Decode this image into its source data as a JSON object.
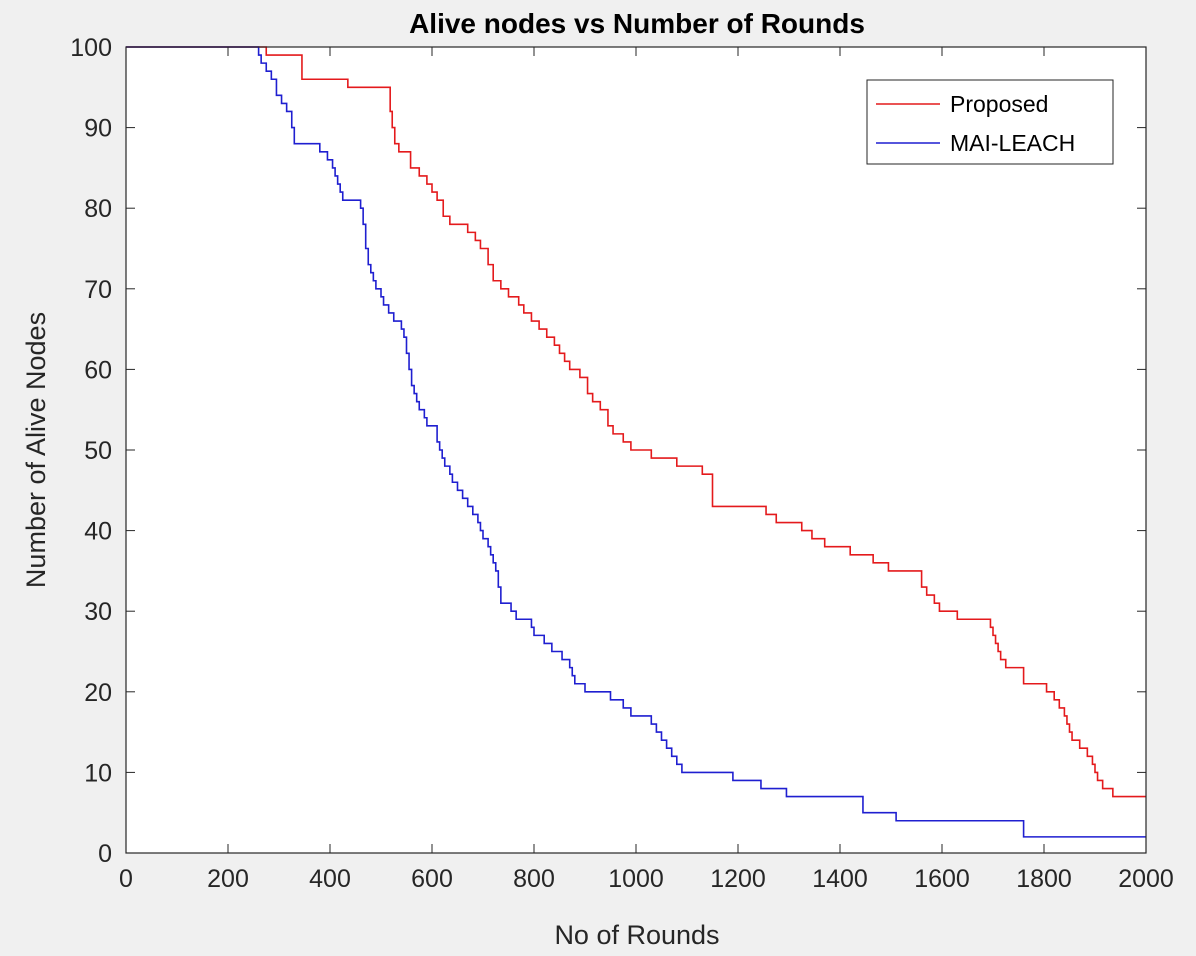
{
  "chart_data": {
    "type": "line",
    "title": "Alive nodes vs Number of Rounds",
    "xlabel": "No of Rounds",
    "ylabel": "Number of Alive Nodes",
    "xlim": [
      0,
      2000
    ],
    "ylim": [
      0,
      100
    ],
    "xticks": [
      "0",
      "200",
      "400",
      "600",
      "800",
      "1000",
      "1200",
      "1400",
      "1600",
      "1800",
      "2000"
    ],
    "yticks": [
      "0",
      "10",
      "20",
      "30",
      "40",
      "50",
      "60",
      "70",
      "80",
      "90",
      "100"
    ],
    "grid": false,
    "legend_position": "top-right",
    "series": [
      {
        "name": "Proposed",
        "color": "#e41a1c",
        "step": true,
        "points": [
          [
            0,
            100
          ],
          [
            270,
            100
          ],
          [
            275,
            99
          ],
          [
            340,
            99
          ],
          [
            345,
            96
          ],
          [
            430,
            96
          ],
          [
            435,
            95
          ],
          [
            515,
            95
          ],
          [
            518,
            92
          ],
          [
            522,
            90
          ],
          [
            527,
            88
          ],
          [
            535,
            87
          ],
          [
            555,
            87
          ],
          [
            558,
            85
          ],
          [
            575,
            84
          ],
          [
            590,
            83
          ],
          [
            600,
            82
          ],
          [
            610,
            81
          ],
          [
            622,
            79
          ],
          [
            635,
            78
          ],
          [
            665,
            78
          ],
          [
            670,
            77
          ],
          [
            685,
            76
          ],
          [
            695,
            75
          ],
          [
            710,
            73
          ],
          [
            720,
            71
          ],
          [
            735,
            70
          ],
          [
            750,
            69
          ],
          [
            770,
            68
          ],
          [
            780,
            67
          ],
          [
            795,
            66
          ],
          [
            810,
            65
          ],
          [
            825,
            64
          ],
          [
            840,
            63
          ],
          [
            850,
            62
          ],
          [
            860,
            61
          ],
          [
            870,
            60
          ],
          [
            890,
            59
          ],
          [
            905,
            57
          ],
          [
            915,
            56
          ],
          [
            930,
            55
          ],
          [
            945,
            53
          ],
          [
            955,
            52
          ],
          [
            975,
            51
          ],
          [
            990,
            50
          ],
          [
            1025,
            50
          ],
          [
            1030,
            49
          ],
          [
            1075,
            49
          ],
          [
            1080,
            48
          ],
          [
            1125,
            48
          ],
          [
            1130,
            47
          ],
          [
            1145,
            47
          ],
          [
            1150,
            43
          ],
          [
            1250,
            43
          ],
          [
            1255,
            42
          ],
          [
            1270,
            42
          ],
          [
            1275,
            41
          ],
          [
            1320,
            41
          ],
          [
            1325,
            40
          ],
          [
            1345,
            39
          ],
          [
            1370,
            38
          ],
          [
            1415,
            38
          ],
          [
            1420,
            37
          ],
          [
            1460,
            37
          ],
          [
            1465,
            36
          ],
          [
            1490,
            36
          ],
          [
            1495,
            35
          ],
          [
            1555,
            35
          ],
          [
            1560,
            33
          ],
          [
            1570,
            32
          ],
          [
            1585,
            31
          ],
          [
            1595,
            30
          ],
          [
            1625,
            30
          ],
          [
            1630,
            29
          ],
          [
            1690,
            29
          ],
          [
            1695,
            28
          ],
          [
            1700,
            27
          ],
          [
            1705,
            26
          ],
          [
            1710,
            25
          ],
          [
            1715,
            24
          ],
          [
            1725,
            23
          ],
          [
            1755,
            23
          ],
          [
            1760,
            21
          ],
          [
            1800,
            21
          ],
          [
            1805,
            20
          ],
          [
            1820,
            19
          ],
          [
            1830,
            18
          ],
          [
            1840,
            17
          ],
          [
            1845,
            16
          ],
          [
            1850,
            15
          ],
          [
            1855,
            14
          ],
          [
            1870,
            13
          ],
          [
            1885,
            12
          ],
          [
            1895,
            11
          ],
          [
            1900,
            10
          ],
          [
            1905,
            9
          ],
          [
            1915,
            8
          ],
          [
            1930,
            8
          ],
          [
            1935,
            7
          ],
          [
            2000,
            7
          ]
        ]
      },
      {
        "name": "MAI-LEACH",
        "color": "#1f1fd0",
        "step": true,
        "points": [
          [
            0,
            100
          ],
          [
            255,
            100
          ],
          [
            260,
            99
          ],
          [
            265,
            98
          ],
          [
            275,
            97
          ],
          [
            285,
            96
          ],
          [
            295,
            94
          ],
          [
            305,
            93
          ],
          [
            315,
            92
          ],
          [
            325,
            90
          ],
          [
            330,
            88
          ],
          [
            375,
            88
          ],
          [
            380,
            87
          ],
          [
            395,
            86
          ],
          [
            405,
            85
          ],
          [
            410,
            84
          ],
          [
            415,
            83
          ],
          [
            420,
            82
          ],
          [
            425,
            81
          ],
          [
            455,
            81
          ],
          [
            460,
            80
          ],
          [
            465,
            78
          ],
          [
            470,
            75
          ],
          [
            475,
            73
          ],
          [
            480,
            72
          ],
          [
            485,
            71
          ],
          [
            490,
            70
          ],
          [
            500,
            69
          ],
          [
            505,
            68
          ],
          [
            515,
            67
          ],
          [
            525,
            66
          ],
          [
            540,
            65
          ],
          [
            545,
            64
          ],
          [
            550,
            62
          ],
          [
            555,
            60
          ],
          [
            560,
            58
          ],
          [
            565,
            57
          ],
          [
            570,
            56
          ],
          [
            575,
            55
          ],
          [
            585,
            54
          ],
          [
            590,
            53
          ],
          [
            605,
            53
          ],
          [
            610,
            51
          ],
          [
            615,
            50
          ],
          [
            620,
            49
          ],
          [
            625,
            48
          ],
          [
            635,
            47
          ],
          [
            640,
            46
          ],
          [
            650,
            45
          ],
          [
            660,
            44
          ],
          [
            670,
            43
          ],
          [
            680,
            42
          ],
          [
            690,
            41
          ],
          [
            695,
            40
          ],
          [
            700,
            39
          ],
          [
            710,
            38
          ],
          [
            715,
            37
          ],
          [
            720,
            36
          ],
          [
            725,
            35
          ],
          [
            730,
            33
          ],
          [
            735,
            31
          ],
          [
            750,
            31
          ],
          [
            755,
            30
          ],
          [
            765,
            29
          ],
          [
            790,
            29
          ],
          [
            795,
            28
          ],
          [
            800,
            27
          ],
          [
            820,
            26
          ],
          [
            835,
            25
          ],
          [
            855,
            24
          ],
          [
            870,
            23
          ],
          [
            875,
            22
          ],
          [
            880,
            21
          ],
          [
            895,
            21
          ],
          [
            900,
            20
          ],
          [
            945,
            20
          ],
          [
            950,
            19
          ],
          [
            975,
            18
          ],
          [
            990,
            17
          ],
          [
            1025,
            17
          ],
          [
            1030,
            16
          ],
          [
            1040,
            15
          ],
          [
            1050,
            14
          ],
          [
            1060,
            13
          ],
          [
            1070,
            12
          ],
          [
            1080,
            11
          ],
          [
            1090,
            10
          ],
          [
            1185,
            10
          ],
          [
            1190,
            9
          ],
          [
            1240,
            9
          ],
          [
            1245,
            8
          ],
          [
            1290,
            8
          ],
          [
            1295,
            7
          ],
          [
            1440,
            7
          ],
          [
            1445,
            5
          ],
          [
            1505,
            5
          ],
          [
            1510,
            4
          ],
          [
            1755,
            4
          ],
          [
            1760,
            2
          ],
          [
            2000,
            2
          ]
        ]
      }
    ]
  }
}
